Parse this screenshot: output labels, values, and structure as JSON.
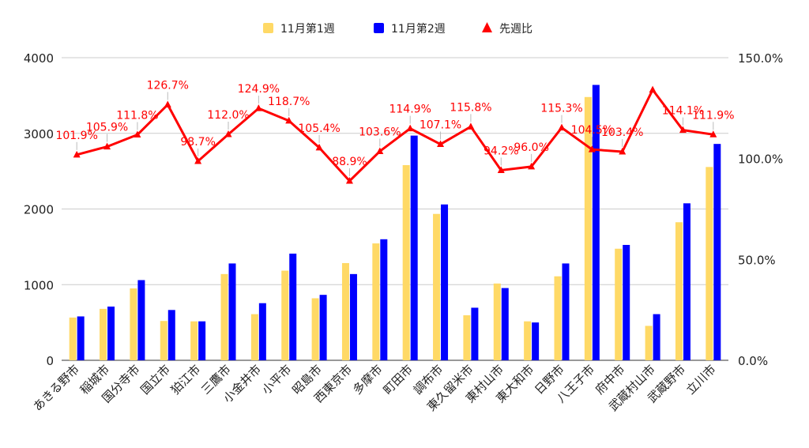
{
  "chart_data": {
    "type": "bar",
    "categories": [
      "あきる野市",
      "稲城市",
      "国分寺市",
      "国立市",
      "狛江市",
      "三鷹市",
      "小金井市",
      "小平市",
      "昭島市",
      "西東京市",
      "多摩市",
      "町田市",
      "調布市",
      "東久留米市",
      "東村山市",
      "東大和市",
      "日野市",
      "八王子市",
      "府中市",
      "武蔵村山市",
      "武蔵野市",
      "立川市"
    ],
    "series": [
      {
        "name": "11月第1週",
        "type": "bar",
        "axis": "left",
        "color": "#ffd966",
        "values": [
          565,
          680,
          950,
          520,
          515,
          1140,
          610,
          1185,
          820,
          1285,
          1545,
          2580,
          1935,
          595,
          1015,
          515,
          1110,
          3480,
          1475,
          455,
          1825,
          2555
        ]
      },
      {
        "name": "11月第2週",
        "type": "bar",
        "axis": "left",
        "color": "#0000ff",
        "values": [
          580,
          710,
          1060,
          665,
          515,
          1280,
          755,
          1410,
          865,
          1140,
          1600,
          2970,
          2060,
          695,
          955,
          500,
          1280,
          3640,
          1525,
          610,
          2075,
          2860
        ]
      },
      {
        "name": "先週比",
        "type": "line",
        "axis": "right",
        "color": "#ff0000",
        "values": [
          101.9,
          105.9,
          111.8,
          126.7,
          98.7,
          112.0,
          124.9,
          118.7,
          105.4,
          88.9,
          103.6,
          114.9,
          107.1,
          115.8,
          94.2,
          96.0,
          115.3,
          104.5,
          103.4,
          134.1,
          114.1,
          111.9
        ],
        "labels": [
          "101.9%",
          "105.9%",
          "111.8%",
          "126.7%",
          "98.7%",
          "112.0%",
          "124.9%",
          "118.7%",
          "105.4%",
          "88.9%",
          "103.6%",
          "114.9%",
          "107.1%",
          "115.8%",
          "94.2%",
          "96.0%",
          "115.3%",
          "104.5%",
          "103.4%",
          "",
          "114.1%",
          "111.9%"
        ]
      }
    ],
    "y_left": {
      "min": 0,
      "max": 4000,
      "ticks": [
        "0",
        "1000",
        "2000",
        "3000",
        "4000"
      ]
    },
    "y_right": {
      "min": 0,
      "max": 150,
      "ticks": [
        "0.0%",
        "50.0%",
        "100.0%",
        "150.0%"
      ]
    },
    "grid": true,
    "legend_position": "top-center"
  }
}
